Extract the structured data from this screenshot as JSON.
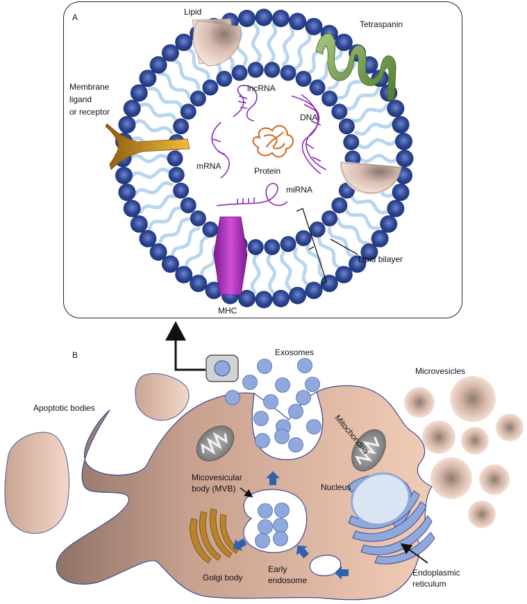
{
  "panels": {
    "a": "A",
    "b": "B"
  },
  "panel_a": {
    "lipid": "Lipid",
    "tetraspanin": "Tetraspanin",
    "membrane_ligand": [
      "Membrane",
      "ligand",
      "or receptor"
    ],
    "lncrna": "lncRNA",
    "dna": "DNA",
    "mrna": "mRNA",
    "protein": "Protein",
    "mirna": "miRNA",
    "lipid_bilayer": "Lipid bilayer",
    "mhc": "MHC"
  },
  "panel_b": {
    "exosomes": "Exosomes",
    "microvesicles": "Microvesicles",
    "apoptotic_bodies": "Apoptotic bodies",
    "mitochondria": "Mitochondria",
    "mvb": [
      "Micovesicular",
      "body (MVB)"
    ],
    "nucleus": "Nucleus",
    "golgi": "Golgi body",
    "early_endosome": [
      "Early",
      "endosome"
    ],
    "er": [
      "Endoplasmic",
      "reticulum"
    ]
  },
  "colors": {
    "bead": "#2e4796",
    "tail": "#b9d6ee",
    "cell": "#e9c2aa",
    "vesicle": "#8fa9dc",
    "arrow": "#2f62ad",
    "rna": "#8a2bb5",
    "protein": "#d2641c",
    "mhc": "#a12fb2",
    "golgi": "#a8771d",
    "tetraspanin": "#7aa150",
    "ligand": "#d19a1f"
  }
}
